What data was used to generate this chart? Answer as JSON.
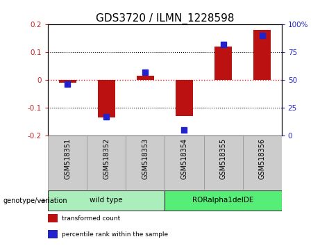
{
  "title": "GDS3720 / ILMN_1228598",
  "samples": [
    "GSM518351",
    "GSM518352",
    "GSM518353",
    "GSM518354",
    "GSM518355",
    "GSM518356"
  ],
  "transformed_count": [
    -0.01,
    -0.135,
    0.015,
    -0.13,
    0.12,
    0.18
  ],
  "percentile_rank": [
    46,
    17,
    57,
    5,
    82,
    90
  ],
  "ylim_left": [
    -0.2,
    0.2
  ],
  "ylim_right": [
    0,
    100
  ],
  "yticks_left": [
    -0.2,
    -0.1,
    0,
    0.1,
    0.2
  ],
  "yticks_right": [
    0,
    25,
    50,
    75,
    100
  ],
  "ytick_labels_left": [
    "-0.2",
    "-0.1",
    "0",
    "0.1",
    "0.2"
  ],
  "ytick_labels_right": [
    "0",
    "25",
    "50",
    "75",
    "100%"
  ],
  "hlines": [
    0.1,
    -0.1
  ],
  "bar_color": "#BB1111",
  "dot_color": "#2222CC",
  "zero_line_color": "#DD2222",
  "gridline_color": "#000000",
  "groups": [
    {
      "label": "wild type",
      "samples": [
        0,
        1,
        2
      ],
      "color": "#AAEEBB"
    },
    {
      "label": "RORalpha1delDE",
      "samples": [
        3,
        4,
        5
      ],
      "color": "#55EE77"
    }
  ],
  "group_label": "genotype/variation",
  "legend_items": [
    {
      "label": "transformed count",
      "color": "#BB1111"
    },
    {
      "label": "percentile rank within the sample",
      "color": "#2222CC"
    }
  ],
  "bar_width": 0.45,
  "dot_size": 30,
  "title_fontsize": 11,
  "tick_fontsize": 7.5,
  "label_fontsize": 7,
  "right_tick_color": "#2222CC",
  "left_tick_color": "#CC2222",
  "background_plot": "#FFFFFF",
  "sample_box_color": "#CCCCCC",
  "sample_box_edge": "#888888"
}
